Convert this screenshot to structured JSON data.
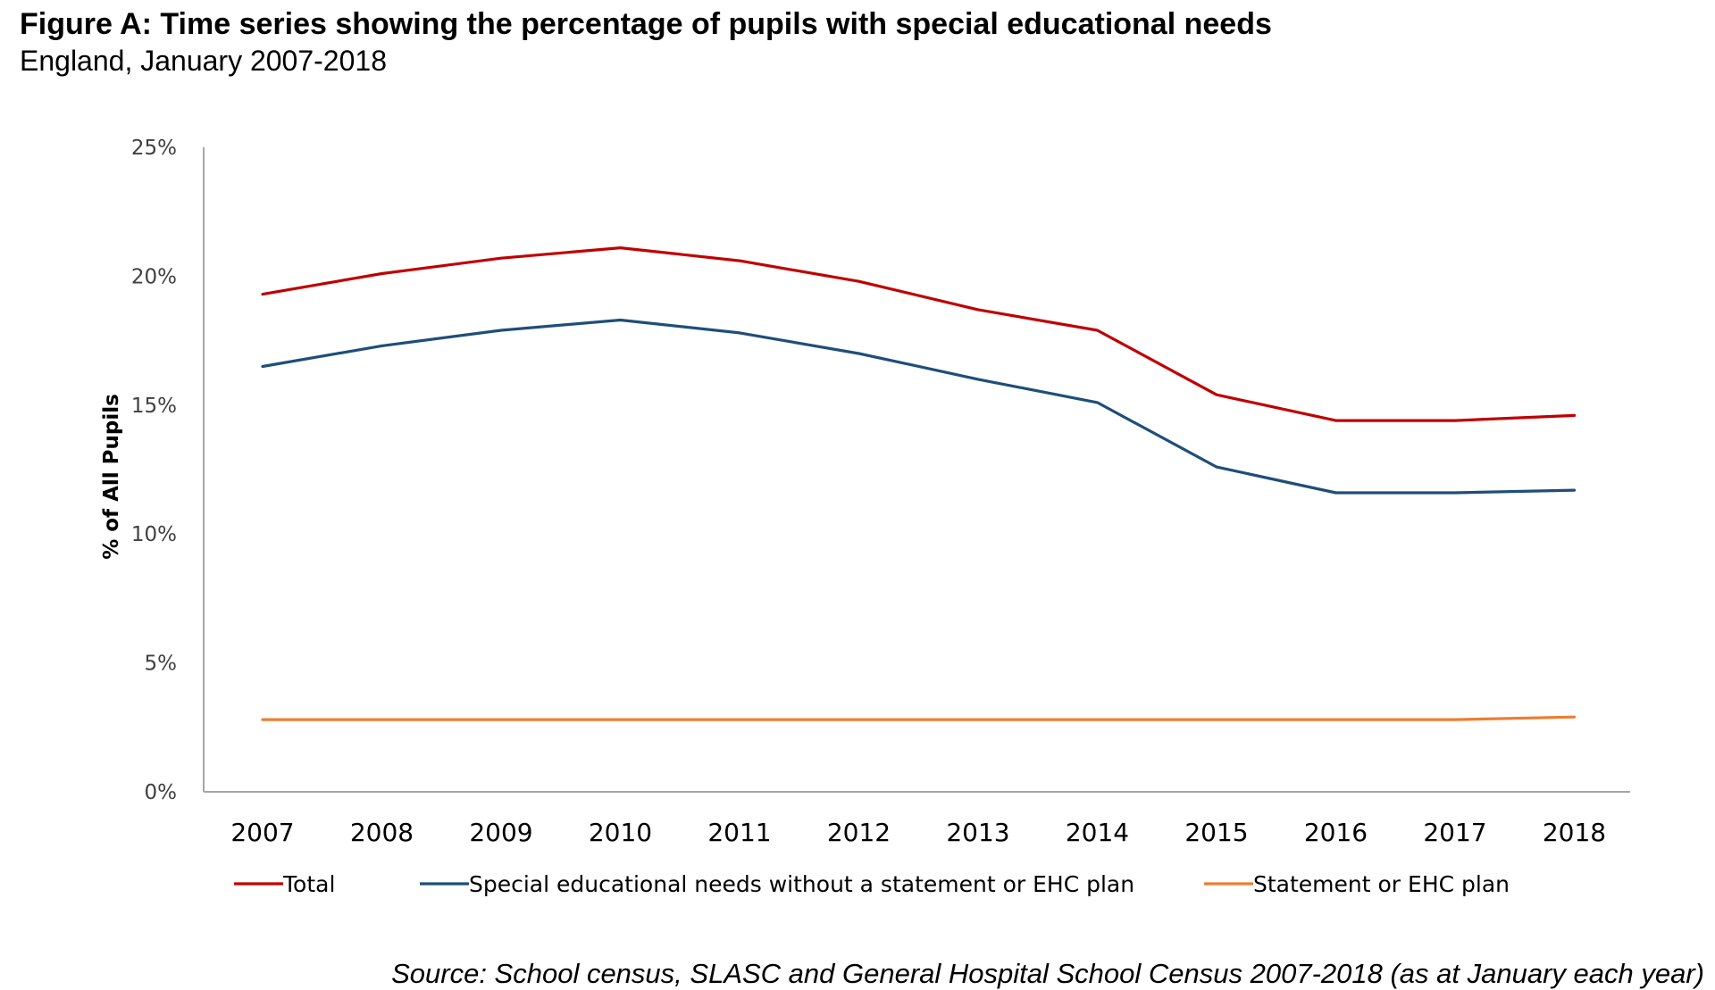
{
  "figure": {
    "title": "Figure A: Time series showing the percentage of pupils with special educational needs",
    "subtitle": "England, January 2007-2018",
    "source": "Source: School census, SLASC and General Hospital School Census 2007-2018 (as at January each year)"
  },
  "chart_data": {
    "type": "line",
    "title": "",
    "xlabel": "",
    "ylabel": "% of All Pupils",
    "x": [
      "2007",
      "2008",
      "2009",
      "2010",
      "2011",
      "2012",
      "2013",
      "2014",
      "2015",
      "2016",
      "2017",
      "2018"
    ],
    "ylim": [
      0,
      25
    ],
    "yticks": [
      0,
      5,
      10,
      15,
      20,
      25
    ],
    "ytick_labels": [
      "0%",
      "5%",
      "10%",
      "15%",
      "20%",
      "25%"
    ],
    "grid": false,
    "legend_position": "bottom",
    "series": [
      {
        "name": "Total",
        "color": "#c00000",
        "values": [
          19.3,
          20.1,
          20.7,
          21.1,
          20.6,
          19.8,
          18.7,
          17.9,
          15.4,
          14.4,
          14.4,
          14.6
        ]
      },
      {
        "name": "Special educational needs without a statement or EHC plan",
        "color": "#1f4e79",
        "values": [
          16.5,
          17.3,
          17.9,
          18.3,
          17.8,
          17.0,
          16.0,
          15.1,
          12.6,
          11.6,
          11.6,
          11.7
        ]
      },
      {
        "name": "Statement or EHC plan",
        "color": "#ed7d31",
        "values": [
          2.8,
          2.8,
          2.8,
          2.8,
          2.8,
          2.8,
          2.8,
          2.8,
          2.8,
          2.8,
          2.8,
          2.9
        ]
      }
    ]
  }
}
